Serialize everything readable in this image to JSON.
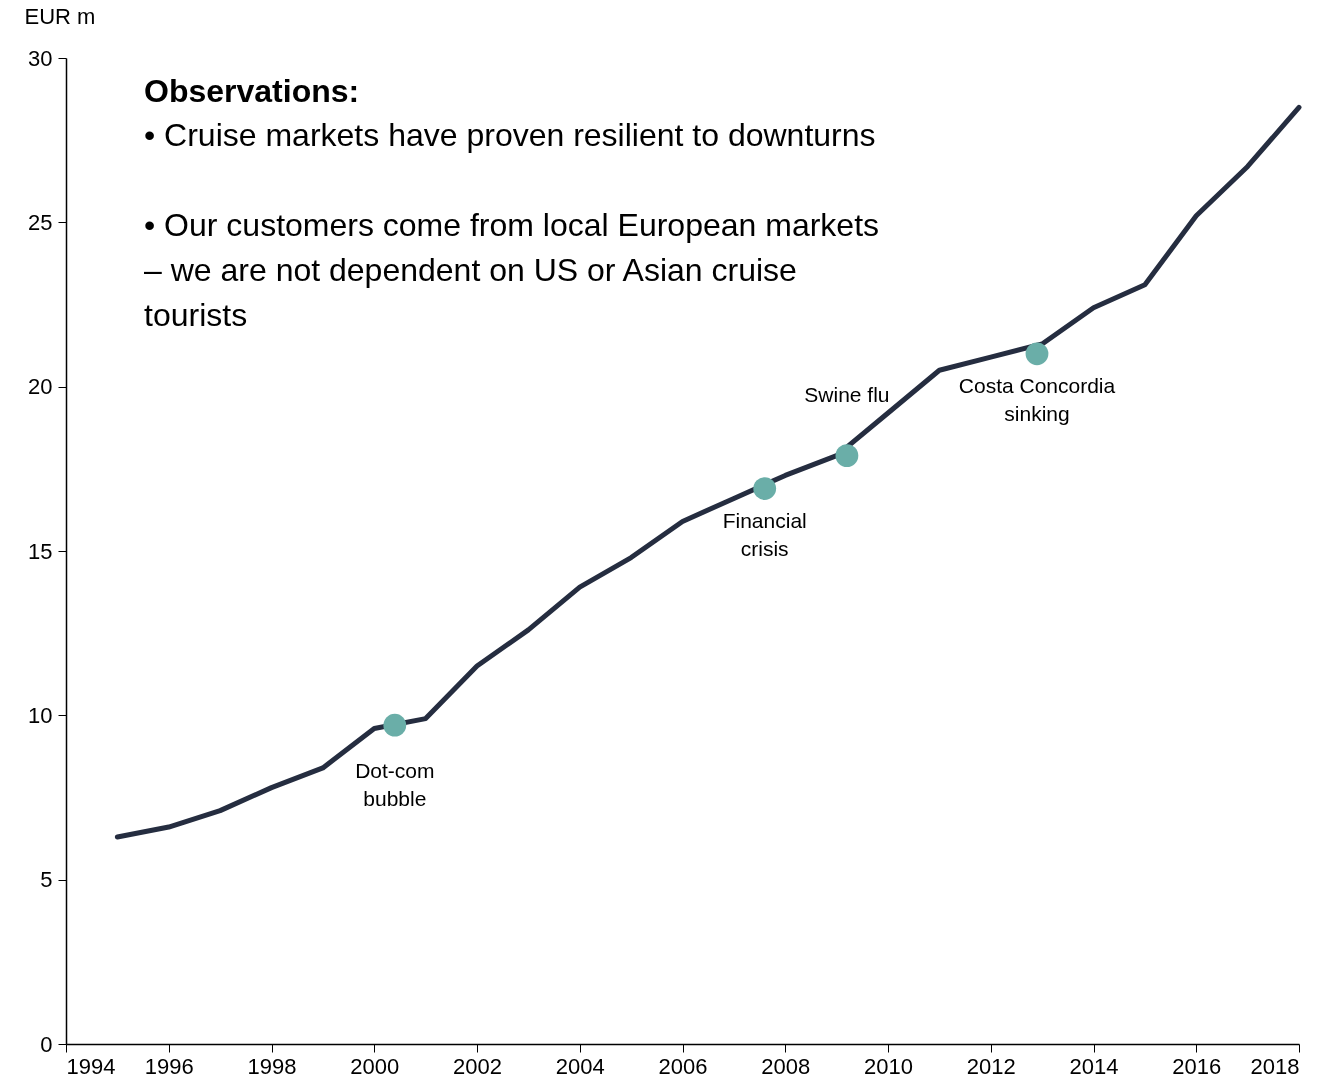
{
  "chart_data": {
    "type": "line",
    "ylabel": "EUR m",
    "x": [
      1995,
      1996,
      1997,
      1998,
      1999,
      2000,
      2001,
      2002,
      2003,
      2004,
      2005,
      2006,
      2007,
      2008,
      2009,
      2010,
      2011,
      2012,
      2013,
      2014,
      2015,
      2016,
      2017,
      2018
    ],
    "series": [
      {
        "color": "#252d40",
        "values": [
          6.3,
          6.6,
          7.1,
          7.8,
          8.4,
          9.6,
          9.9,
          11.5,
          12.6,
          13.9,
          14.8,
          15.9,
          16.6,
          17.3,
          17.9,
          19.2,
          20.5,
          20.9,
          21.3,
          22.4,
          23.1,
          25.2,
          26.7,
          28.5
        ]
      },
      {
        "type": "scatter",
        "color": "#6aaea8",
        "marker": "circle",
        "x": [
          2000.4,
          2007.6,
          2009.2,
          2012.9
        ],
        "values": [
          9.7,
          16.9,
          17.9,
          21.0
        ]
      }
    ],
    "xlim": [
      1994,
      2018
    ],
    "xticks": [
      1994,
      1996,
      1998,
      2000,
      2002,
      2004,
      2006,
      2008,
      2010,
      2012,
      2014,
      2016,
      2018
    ],
    "ylim": [
      0,
      30
    ],
    "yticks": [
      0,
      5,
      10,
      15,
      20,
      25,
      30
    ],
    "annotations": [
      {
        "text": "Dot-com\nbubble",
        "x": 2000.4,
        "y": 9.7
      },
      {
        "text": "Financial\ncrisis",
        "x": 2007.6,
        "y": 16.9
      },
      {
        "text": "Swine flu",
        "x": 2009.2,
        "y": 17.9
      },
      {
        "text": "Costa Concordia\nsinking",
        "x": 2012.9,
        "y": 21.0
      },
      "Observations:",
      "•    Cruise markets have proven resilient to downturns",
      "•    Our customers come from local European markets\n      – we are not dependent on US or Asian cruise\n      tourists"
    ]
  }
}
